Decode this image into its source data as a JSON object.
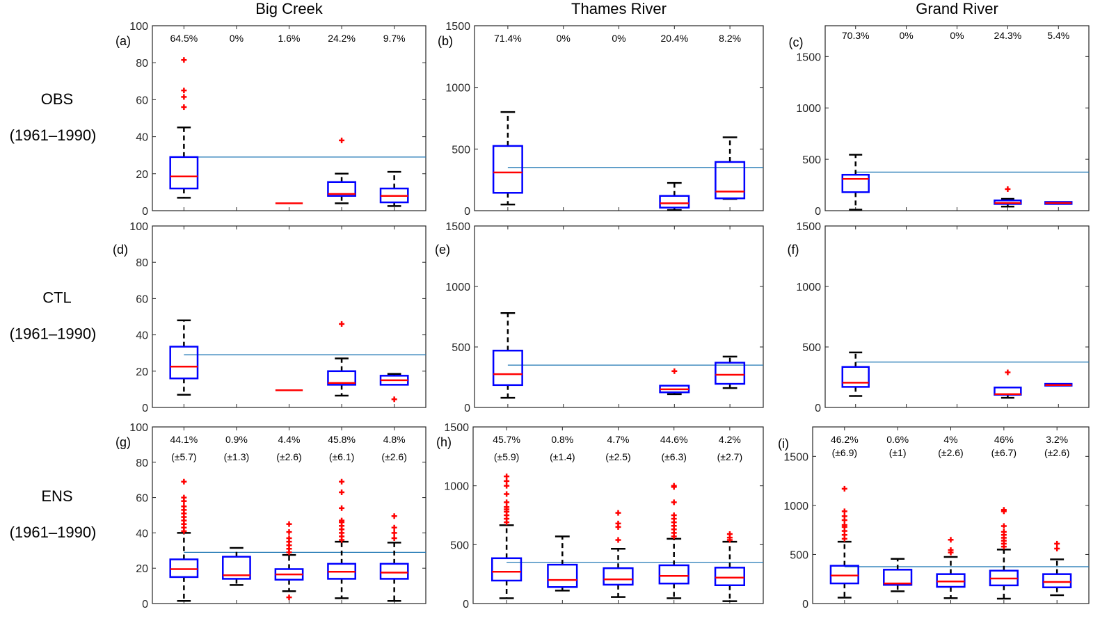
{
  "chart_data": {
    "type": "boxplot",
    "columns": [
      "Big Creek",
      "Thames River",
      "Grand River"
    ],
    "rows": [
      {
        "label": "OBS",
        "period": "(1961–1990)"
      },
      {
        "label": "CTL",
        "period": "(1961–1990)"
      },
      {
        "label": "ENS",
        "period": "(1961–1990)"
      }
    ],
    "reference_line_color": "#1f77b4",
    "box_color": "#0000ff",
    "median_color": "#ff0000",
    "whisker_color": "#000000",
    "outlier_color": "#ff0000",
    "panels": [
      {
        "id": "a",
        "label": "(a)",
        "row": 0,
        "col": 0,
        "ylim": [
          0,
          100
        ],
        "yticks": [
          0,
          20,
          40,
          60,
          80,
          100
        ],
        "reference": 29,
        "percentages": [
          "64.5%",
          "0%",
          "1.6%",
          "24.2%",
          "9.7%"
        ],
        "spreads": [],
        "boxes": [
          {
            "q1": 12,
            "median": 18.5,
            "q3": 29,
            "wlo": 7,
            "whi": 45,
            "outliers": [
              56,
              61.5,
              65,
              81.5
            ]
          },
          null,
          {
            "q1": 4,
            "median": 4,
            "q3": 4,
            "wlo": null,
            "whi": null,
            "outliers": []
          },
          {
            "q1": 8,
            "median": 9,
            "q3": 15.5,
            "wlo": 4,
            "whi": 20,
            "outliers": [
              38
            ]
          },
          {
            "q1": 4.5,
            "median": 8,
            "q3": 12,
            "wlo": 2.5,
            "whi": 21,
            "outliers": []
          }
        ]
      },
      {
        "id": "b",
        "label": "(b)",
        "row": 0,
        "col": 1,
        "ylim": [
          0,
          1500
        ],
        "yticks": [
          0,
          500,
          1000,
          1500
        ],
        "reference": 350,
        "percentages": [
          "71.4%",
          "0%",
          "0%",
          "20.4%",
          "8.2%"
        ],
        "spreads": [],
        "boxes": [
          {
            "q1": 145,
            "median": 310,
            "q3": 525,
            "wlo": 50,
            "whi": 800,
            "outliers": []
          },
          null,
          null,
          {
            "q1": 25,
            "median": 60,
            "q3": 120,
            "wlo": 5,
            "whi": 225,
            "outliers": []
          },
          {
            "q1": 100,
            "median": 155,
            "q3": 395,
            "wlo": 95,
            "whi": 595,
            "outliers": []
          }
        ]
      },
      {
        "id": "c",
        "label": "(c)",
        "row": 0,
        "col": 2,
        "ylim": [
          0,
          1800
        ],
        "yticks": [
          0,
          500,
          1000,
          1500
        ],
        "reference": 375,
        "percentages": [
          "70.3%",
          "0%",
          "0%",
          "24.3%",
          "5.4%"
        ],
        "spreads": [],
        "boxes": [
          {
            "q1": 180,
            "median": 310,
            "q3": 350,
            "wlo": 10,
            "whi": 545,
            "outliers": []
          },
          null,
          null,
          {
            "q1": 65,
            "median": 75,
            "q3": 100,
            "wlo": 40,
            "whi": 115,
            "outliers": [
              210
            ]
          },
          {
            "q1": 65,
            "median": 75,
            "q3": 85,
            "wlo": null,
            "whi": null,
            "outliers": []
          }
        ]
      },
      {
        "id": "d",
        "label": "(d)",
        "row": 1,
        "col": 0,
        "ylim": [
          0,
          100
        ],
        "yticks": [
          0,
          20,
          40,
          60,
          80,
          100
        ],
        "reference": 29,
        "percentages": [],
        "spreads": [],
        "boxes": [
          {
            "q1": 16,
            "median": 22.5,
            "q3": 33.5,
            "wlo": 7,
            "whi": 48,
            "outliers": []
          },
          null,
          {
            "q1": 9.5,
            "median": 9.5,
            "q3": 9.5,
            "wlo": null,
            "whi": null,
            "outliers": []
          },
          {
            "q1": 12.5,
            "median": 13.5,
            "q3": 20,
            "wlo": 6.5,
            "whi": 27,
            "outliers": [
              46
            ]
          },
          {
            "q1": 12.5,
            "median": 15,
            "q3": 17.5,
            "wlo": null,
            "whi": 18.5,
            "outliers": [
              4.5
            ]
          }
        ]
      },
      {
        "id": "e",
        "label": "(e)",
        "row": 1,
        "col": 1,
        "ylim": [
          0,
          1500
        ],
        "yticks": [
          0,
          500,
          1000,
          1500
        ],
        "reference": 350,
        "percentages": [],
        "spreads": [],
        "boxes": [
          {
            "q1": 185,
            "median": 275,
            "q3": 470,
            "wlo": 80,
            "whi": 780,
            "outliers": []
          },
          null,
          null,
          {
            "q1": 125,
            "median": 150,
            "q3": 180,
            "wlo": 110,
            "whi": null,
            "outliers": [
              300
            ]
          },
          {
            "q1": 195,
            "median": 270,
            "q3": 370,
            "wlo": 160,
            "whi": 420,
            "outliers": []
          }
        ]
      },
      {
        "id": "f",
        "label": "(f)",
        "row": 1,
        "col": 2,
        "ylim": [
          0,
          1500
        ],
        "yticks": [
          0,
          500,
          1000,
          1500
        ],
        "reference": 375,
        "percentages": [],
        "spreads": [],
        "boxes": [
          {
            "q1": 170,
            "median": 205,
            "q3": 335,
            "wlo": 95,
            "whi": 455,
            "outliers": []
          },
          null,
          null,
          {
            "q1": 105,
            "median": 110,
            "q3": 165,
            "wlo": 80,
            "whi": null,
            "outliers": [
              290
            ]
          },
          {
            "q1": 180,
            "median": 185,
            "q3": 195,
            "wlo": null,
            "whi": null,
            "outliers": []
          }
        ]
      },
      {
        "id": "g",
        "label": "(g)",
        "row": 2,
        "col": 0,
        "ylim": [
          0,
          100
        ],
        "yticks": [
          0,
          20,
          40,
          60,
          80,
          100
        ],
        "reference": 29,
        "percentages": [
          "44.1%",
          "0.9%",
          "4.4%",
          "45.8%",
          "4.8%"
        ],
        "spreads": [
          "(±5.7)",
          "(±1.3)",
          "(±2.6)",
          "(±6.1)",
          "(±2.6)"
        ],
        "boxes": [
          {
            "q1": 15,
            "median": 19.5,
            "q3": 25,
            "wlo": 1.5,
            "whi": 40,
            "outliers": [
              41,
              43,
              45,
              47,
              49,
              51,
              53,
              55,
              58,
              60,
              69
            ]
          },
          {
            "q1": 14,
            "median": 16,
            "q3": 26.5,
            "wlo": 10.5,
            "whi": 31.5,
            "outliers": []
          },
          {
            "q1": 13.5,
            "median": 16.5,
            "q3": 19.5,
            "wlo": 7,
            "whi": 27.5,
            "outliers": [
              3.5,
              29,
              31,
              33,
              35,
              37,
              40.5,
              45
            ]
          },
          {
            "q1": 14,
            "median": 18,
            "q3": 22.5,
            "wlo": 3,
            "whi": 35,
            "outliers": [
              36,
              38,
              40,
              42,
              44,
              46,
              47,
              54,
              63,
              69
            ]
          },
          {
            "q1": 14,
            "median": 17.5,
            "q3": 22.5,
            "wlo": 1.5,
            "whi": 34.5,
            "outliers": [
              37,
              40,
              43,
              49.5
            ]
          }
        ]
      },
      {
        "id": "h",
        "label": "(h)",
        "row": 2,
        "col": 1,
        "ylim": [
          0,
          1500
        ],
        "yticks": [
          0,
          500,
          1000,
          1500
        ],
        "reference": 350,
        "percentages": [
          "45.7%",
          "0.8%",
          "4.7%",
          "44.6%",
          "4.2%"
        ],
        "spreads": [
          "(±5.9)",
          "(±1.4)",
          "(±2.5)",
          "(±6.3)",
          "(±2.7)"
        ],
        "boxes": [
          {
            "q1": 195,
            "median": 270,
            "q3": 385,
            "wlo": 45,
            "whi": 665,
            "outliers": [
              690,
              720,
              750,
              780,
              800,
              820,
              860,
              930,
              1000,
              1040,
              1080
            ]
          },
          {
            "q1": 140,
            "median": 200,
            "q3": 330,
            "wlo": 110,
            "whi": 570,
            "outliers": []
          },
          {
            "q1": 160,
            "median": 205,
            "q3": 300,
            "wlo": 55,
            "whi": 465,
            "outliers": [
              540,
              650,
              680,
              770
            ]
          },
          {
            "q1": 170,
            "median": 235,
            "q3": 325,
            "wlo": 45,
            "whi": 550,
            "outliers": [
              570,
              600,
              630,
              660,
              690,
              720,
              750,
              860,
              990,
              1000
            ]
          },
          {
            "q1": 155,
            "median": 220,
            "q3": 305,
            "wlo": 20,
            "whi": 525,
            "outliers": [
              540,
              560,
              590
            ]
          }
        ]
      },
      {
        "id": "i",
        "label": "(i)",
        "row": 2,
        "col": 2,
        "ylim": [
          0,
          1800
        ],
        "yticks": [
          0,
          500,
          1000,
          1500
        ],
        "reference": 375,
        "percentages": [
          "46.2%",
          "0.6%",
          "4%",
          "46%",
          "3.2%"
        ],
        "spreads": [
          "(±6.9)",
          "(±1)",
          "(±2.6)",
          "(±6.7)",
          "(±2.6)"
        ],
        "boxes": [
          {
            "q1": 205,
            "median": 285,
            "q3": 385,
            "wlo": 60,
            "whi": 630,
            "outliers": [
              660,
              700,
              740,
              780,
              800,
              850,
              890,
              940,
              1170
            ]
          },
          {
            "q1": 190,
            "median": 205,
            "q3": 345,
            "wlo": 125,
            "whi": 455,
            "outliers": []
          },
          {
            "q1": 170,
            "median": 225,
            "q3": 300,
            "wlo": 55,
            "whi": 475,
            "outliers": [
              520,
              545,
              650
            ]
          },
          {
            "q1": 185,
            "median": 255,
            "q3": 335,
            "wlo": 50,
            "whi": 550,
            "outliers": [
              580,
              610,
              640,
              670,
              700,
              730,
              790,
              940,
              955
            ]
          },
          {
            "q1": 165,
            "median": 220,
            "q3": 300,
            "wlo": 85,
            "whi": 450,
            "outliers": [
              560,
              610
            ]
          }
        ]
      }
    ]
  }
}
